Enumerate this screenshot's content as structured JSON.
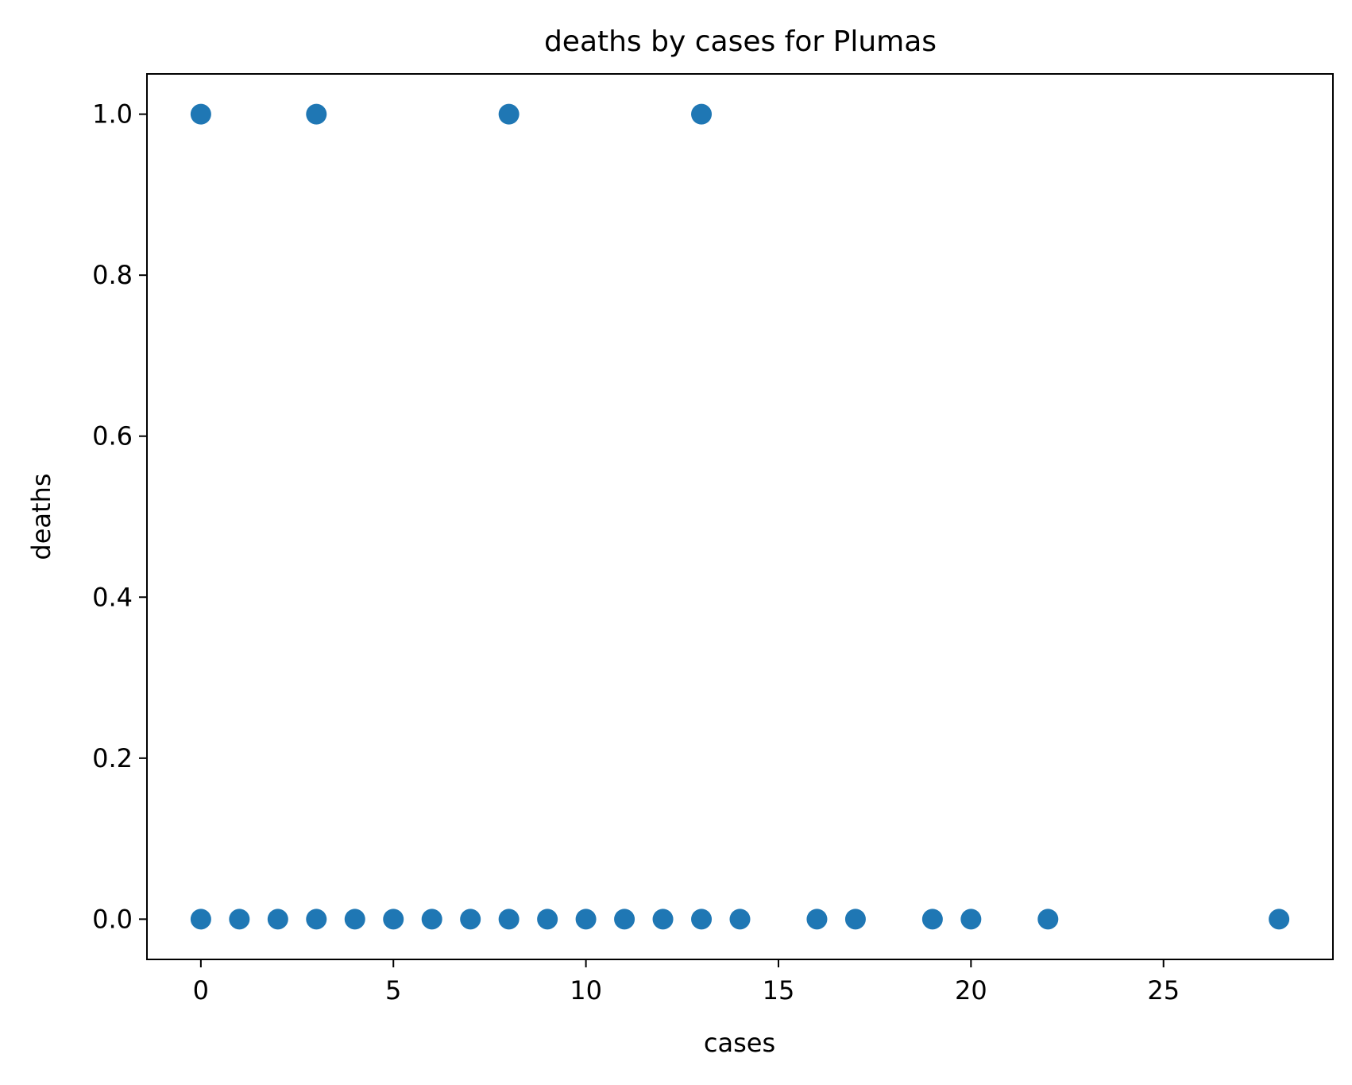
{
  "chart_data": {
    "type": "scatter",
    "title": "deaths by cases for Plumas",
    "xlabel": "cases",
    "ylabel": "deaths",
    "xlim": [
      -1.4,
      29.4
    ],
    "ylim": [
      -0.05,
      1.05
    ],
    "x_ticks": [
      0,
      5,
      10,
      15,
      20,
      25
    ],
    "x_tick_labels": [
      "0",
      "5",
      "10",
      "15",
      "20",
      "25"
    ],
    "y_ticks": [
      0.0,
      0.2,
      0.4,
      0.6,
      0.8,
      1.0
    ],
    "y_tick_labels": [
      "0.0",
      "0.2",
      "0.4",
      "0.6",
      "0.8",
      "1.0"
    ],
    "grid": false,
    "legend": "none",
    "marker_color": "#1f77b4",
    "series": [
      {
        "points": [
          {
            "x": 0,
            "y": 1
          },
          {
            "x": 3,
            "y": 1
          },
          {
            "x": 8,
            "y": 1
          },
          {
            "x": 13,
            "y": 1
          },
          {
            "x": 0,
            "y": 0
          },
          {
            "x": 1,
            "y": 0
          },
          {
            "x": 2,
            "y": 0
          },
          {
            "x": 3,
            "y": 0
          },
          {
            "x": 4,
            "y": 0
          },
          {
            "x": 5,
            "y": 0
          },
          {
            "x": 6,
            "y": 0
          },
          {
            "x": 7,
            "y": 0
          },
          {
            "x": 8,
            "y": 0
          },
          {
            "x": 9,
            "y": 0
          },
          {
            "x": 10,
            "y": 0
          },
          {
            "x": 11,
            "y": 0
          },
          {
            "x": 12,
            "y": 0
          },
          {
            "x": 13,
            "y": 0
          },
          {
            "x": 14,
            "y": 0
          },
          {
            "x": 16,
            "y": 0
          },
          {
            "x": 17,
            "y": 0
          },
          {
            "x": 19,
            "y": 0
          },
          {
            "x": 20,
            "y": 0
          },
          {
            "x": 22,
            "y": 0
          },
          {
            "x": 28,
            "y": 0
          }
        ]
      }
    ]
  }
}
